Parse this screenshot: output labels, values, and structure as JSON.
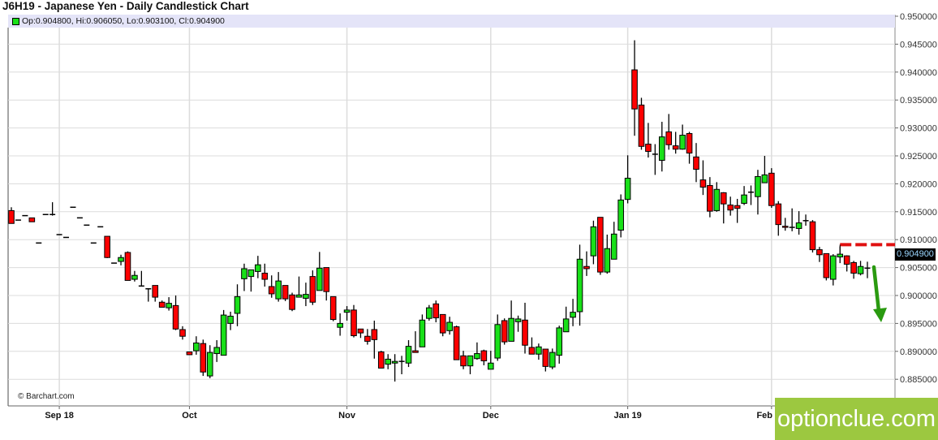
{
  "header": {
    "title": "J6H19 - Japanese Yen - Daily Candlestick Chart"
  },
  "info": {
    "text": "Op:0.904800, Hi:0.906050, Lo:0.903100, Cl:0.904900"
  },
  "credit": "© Barchart.com",
  "watermark": "optionclue.com",
  "colors": {
    "up": "#19e019",
    "down": "#ff0000",
    "grid": "#dcdcdc",
    "arrow": "#2a9a10",
    "level": "#e01010",
    "logo_bg": "#9cc840"
  },
  "chart_data": {
    "type": "candlestick",
    "title": "J6H19 - Japanese Yen - Daily Candlestick Chart",
    "ylim": [
      0.8825,
      0.95
    ],
    "yticks": [
      "0.885000",
      "0.890000",
      "0.895000",
      "0.900000",
      "0.905000",
      "0.910000",
      "0.915000",
      "0.920000",
      "0.925000",
      "0.930000",
      "0.935000",
      "0.940000",
      "0.945000",
      "0.950000"
    ],
    "xticks": [
      {
        "label": "Sep 18",
        "candle": 8
      },
      {
        "label": "Oct",
        "candle": 27
      },
      {
        "label": "Nov",
        "candle": 50
      },
      {
        "label": "Dec",
        "candle": 71
      },
      {
        "label": "Jan 19",
        "candle": 91
      },
      {
        "label": "Feb",
        "candle": 112
      }
    ],
    "grid": true,
    "last_price_label": "0.904900",
    "resistance_level": 0.9091,
    "resistance_start_candle": 122,
    "annotation": "green downward arrow after last candle",
    "ohlc": [
      [
        0.9152,
        0.9158,
        0.9129,
        0.9129
      ],
      [
        0.9135,
        0.9135,
        0.9135,
        0.9135
      ],
      [
        0.9143,
        0.9143,
        0.9143,
        0.9143
      ],
      [
        0.9139,
        0.9139,
        0.9132,
        0.9132
      ],
      [
        0.9094,
        0.9094,
        0.9094,
        0.9094
      ],
      [
        0.9145,
        0.9145,
        0.9145,
        0.9145
      ],
      [
        0.9145,
        0.9167,
        0.9143,
        0.9145
      ],
      [
        0.9109,
        0.9109,
        0.9109,
        0.9109
      ],
      [
        0.9104,
        0.9104,
        0.9104,
        0.9104
      ],
      [
        0.9158,
        0.9158,
        0.9158,
        0.9158
      ],
      [
        0.9139,
        0.9139,
        0.9139,
        0.9139
      ],
      [
        0.9126,
        0.9126,
        0.9126,
        0.9126
      ],
      [
        0.9094,
        0.9094,
        0.9094,
        0.9094
      ],
      [
        0.9123,
        0.9123,
        0.9123,
        0.9123
      ],
      [
        0.9106,
        0.9106,
        0.9067,
        0.9068
      ],
      [
        0.9058,
        0.9058,
        0.9058,
        0.9058
      ],
      [
        0.9061,
        0.9073,
        0.9054,
        0.9068
      ],
      [
        0.9077,
        0.9079,
        0.9027,
        0.9027
      ],
      [
        0.9029,
        0.9044,
        0.9025,
        0.9036
      ],
      [
        0.9017,
        0.9044,
        0.9016,
        0.9017
      ],
      [
        0.9012,
        0.9012,
        0.8989,
        0.9011
      ],
      [
        0.9018,
        0.9018,
        0.8989,
        0.8997
      ],
      [
        0.8988,
        0.8991,
        0.8979,
        0.8979
      ],
      [
        0.8978,
        0.8997,
        0.8973,
        0.8986
      ],
      [
        0.8982,
        0.9,
        0.8938,
        0.894
      ],
      [
        0.8939,
        0.8945,
        0.8921,
        0.8927
      ],
      [
        0.8899,
        0.8899,
        0.8894,
        0.8894
      ],
      [
        0.8901,
        0.8927,
        0.8894,
        0.8915
      ],
      [
        0.8914,
        0.8921,
        0.8856,
        0.8863
      ],
      [
        0.8856,
        0.8911,
        0.8852,
        0.8898
      ],
      [
        0.8896,
        0.892,
        0.8881,
        0.8907
      ],
      [
        0.8893,
        0.8974,
        0.8893,
        0.8965
      ],
      [
        0.895,
        0.8971,
        0.8938,
        0.8963
      ],
      [
        0.8968,
        0.902,
        0.8945,
        0.8998
      ],
      [
        0.903,
        0.9057,
        0.9008,
        0.9048
      ],
      [
        0.9034,
        0.9046,
        0.9007,
        0.9046
      ],
      [
        0.9043,
        0.9071,
        0.9031,
        0.9055
      ],
      [
        0.904,
        0.9057,
        0.9016,
        0.9029
      ],
      [
        0.9016,
        0.9036,
        0.8996,
        0.9003
      ],
      [
        0.8994,
        0.9042,
        0.8989,
        0.9026
      ],
      [
        0.9018,
        0.9018,
        0.899,
        0.8994
      ],
      [
        0.9001,
        0.9005,
        0.8972,
        0.8975
      ],
      [
        0.8997,
        0.9034,
        0.8997,
        0.9001
      ],
      [
        0.8995,
        0.9023,
        0.8981,
        0.9002
      ],
      [
        0.9034,
        0.9045,
        0.8983,
        0.8988
      ],
      [
        0.9009,
        0.9078,
        0.9009,
        0.9049
      ],
      [
        0.905,
        0.905,
        0.8991,
        0.9007
      ],
      [
        0.8998,
        0.8998,
        0.8954,
        0.8957
      ],
      [
        0.8943,
        0.8968,
        0.8928,
        0.895
      ],
      [
        0.897,
        0.8981,
        0.8955,
        0.8974
      ],
      [
        0.8974,
        0.8983,
        0.8925,
        0.8928
      ],
      [
        0.894,
        0.894,
        0.8924,
        0.8933
      ],
      [
        0.8927,
        0.894,
        0.8912,
        0.8918
      ],
      [
        0.8939,
        0.8955,
        0.8887,
        0.8921
      ],
      [
        0.8899,
        0.8901,
        0.887,
        0.887
      ],
      [
        0.8877,
        0.8895,
        0.8868,
        0.8886
      ],
      [
        0.8879,
        0.8895,
        0.8846,
        0.8882
      ],
      [
        0.8882,
        0.8892,
        0.8859,
        0.8882
      ],
      [
        0.8879,
        0.892,
        0.8872,
        0.8909
      ],
      [
        0.8901,
        0.8936,
        0.8898,
        0.8898
      ],
      [
        0.8908,
        0.8966,
        0.8908,
        0.8956
      ],
      [
        0.8959,
        0.8983,
        0.8955,
        0.8978
      ],
      [
        0.8985,
        0.8991,
        0.8952,
        0.896
      ],
      [
        0.8966,
        0.8966,
        0.8927,
        0.8933
      ],
      [
        0.8937,
        0.8962,
        0.893,
        0.8952
      ],
      [
        0.8944,
        0.8946,
        0.8885,
        0.8885
      ],
      [
        0.8892,
        0.8901,
        0.8868,
        0.8874
      ],
      [
        0.8874,
        0.8892,
        0.8859,
        0.8892
      ],
      [
        0.8887,
        0.8916,
        0.8885,
        0.8896
      ],
      [
        0.8901,
        0.8903,
        0.8875,
        0.8883
      ],
      [
        0.8868,
        0.8901,
        0.8868,
        0.8879
      ],
      [
        0.8888,
        0.8966,
        0.8883,
        0.8948
      ],
      [
        0.8955,
        0.8959,
        0.8912,
        0.8917
      ],
      [
        0.8918,
        0.8991,
        0.8918,
        0.8959
      ],
      [
        0.8953,
        0.8964,
        0.8935,
        0.8958
      ],
      [
        0.8956,
        0.8987,
        0.8896,
        0.8911
      ],
      [
        0.8907,
        0.8925,
        0.8895,
        0.8895
      ],
      [
        0.8895,
        0.8914,
        0.8885,
        0.8908
      ],
      [
        0.8904,
        0.8904,
        0.8864,
        0.8873
      ],
      [
        0.8872,
        0.8905,
        0.8868,
        0.8898
      ],
      [
        0.8893,
        0.8946,
        0.8878,
        0.8942
      ],
      [
        0.8935,
        0.898,
        0.8935,
        0.8958
      ],
      [
        0.8961,
        0.8994,
        0.8945,
        0.897
      ],
      [
        0.8971,
        0.9091,
        0.8946,
        0.9065
      ],
      [
        0.9052,
        0.9079,
        0.9035,
        0.9048
      ],
      [
        0.9071,
        0.9134,
        0.9056,
        0.9123
      ],
      [
        0.914,
        0.914,
        0.9037,
        0.9042
      ],
      [
        0.9042,
        0.9109,
        0.9039,
        0.9084
      ],
      [
        0.9065,
        0.9132,
        0.9065,
        0.911
      ],
      [
        0.9117,
        0.9181,
        0.9104,
        0.9171
      ],
      [
        0.9172,
        0.9251,
        0.9165,
        0.921
      ],
      [
        0.9404,
        0.9457,
        0.9286,
        0.9334
      ],
      [
        0.9341,
        0.9354,
        0.9261,
        0.9267
      ],
      [
        0.9271,
        0.9309,
        0.9247,
        0.9258
      ],
      [
        0.9253,
        0.9271,
        0.9216,
        0.9253
      ],
      [
        0.9242,
        0.9311,
        0.9222,
        0.9284
      ],
      [
        0.9293,
        0.9325,
        0.9261,
        0.927
      ],
      [
        0.9268,
        0.9293,
        0.9254,
        0.9262
      ],
      [
        0.9262,
        0.9306,
        0.9261,
        0.9287
      ],
      [
        0.929,
        0.9293,
        0.9236,
        0.9255
      ],
      [
        0.9248,
        0.9273,
        0.9203,
        0.9226
      ],
      [
        0.9207,
        0.9242,
        0.918,
        0.9194
      ],
      [
        0.9197,
        0.9212,
        0.914,
        0.9151
      ],
      [
        0.9152,
        0.9203,
        0.915,
        0.919
      ],
      [
        0.9184,
        0.9185,
        0.9129,
        0.9164
      ],
      [
        0.9162,
        0.9177,
        0.9143,
        0.9153
      ],
      [
        0.9161,
        0.9173,
        0.913,
        0.9156
      ],
      [
        0.9165,
        0.9196,
        0.9162,
        0.918
      ],
      [
        0.9185,
        0.9197,
        0.9162,
        0.9185
      ],
      [
        0.9177,
        0.9225,
        0.9145,
        0.9213
      ],
      [
        0.9202,
        0.925,
        0.9202,
        0.9216
      ],
      [
        0.9219,
        0.9228,
        0.9157,
        0.9161
      ],
      [
        0.9164,
        0.9169,
        0.9107,
        0.9127
      ],
      [
        0.9124,
        0.9139,
        0.9116,
        0.9122
      ],
      [
        0.9122,
        0.9156,
        0.9115,
        0.9122
      ],
      [
        0.912,
        0.9151,
        0.9109,
        0.913
      ],
      [
        0.9134,
        0.9145,
        0.9125,
        0.9134
      ],
      [
        0.9132,
        0.9135,
        0.9077,
        0.9082
      ],
      [
        0.9082,
        0.9087,
        0.906,
        0.9073
      ],
      [
        0.9075,
        0.9075,
        0.9027,
        0.9032
      ],
      [
        0.9029,
        0.9074,
        0.9018,
        0.9071
      ],
      [
        0.9069,
        0.9088,
        0.9058,
        0.9074
      ],
      [
        0.9071,
        0.9072,
        0.9043,
        0.9056
      ],
      [
        0.9059,
        0.9062,
        0.903,
        0.904
      ],
      [
        0.9039,
        0.9062,
        0.9036,
        0.9052
      ],
      [
        0.9048,
        0.90605,
        0.9031,
        0.9049
      ]
    ]
  }
}
